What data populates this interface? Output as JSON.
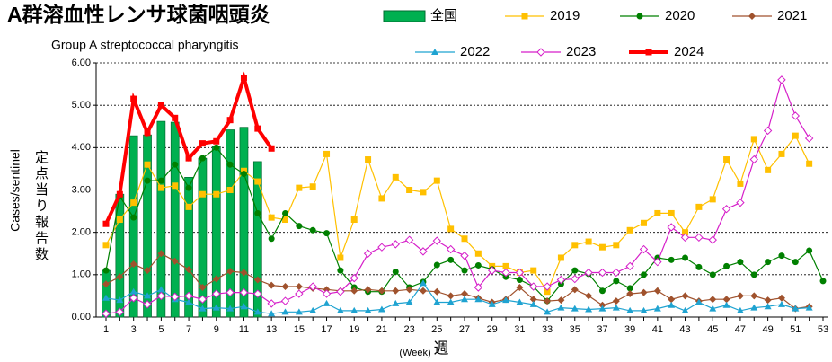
{
  "chart_data": {
    "type": "line",
    "title": "A群溶血性レンサ球菌咽頭炎",
    "subtitle": "Group A streptococcal pharyngitis",
    "y_label": "Cases/sentinel",
    "y_label_ja": "定点当り報告数",
    "x_label": "(Week)",
    "x_label_ja": "週",
    "categories": [
      1,
      null,
      3,
      null,
      5,
      null,
      7,
      null,
      9,
      null,
      11,
      null,
      13,
      null,
      15,
      null,
      17,
      null,
      19,
      null,
      21,
      null,
      23,
      null,
      25,
      null,
      27,
      null,
      29,
      null,
      31,
      null,
      33,
      null,
      35,
      null,
      37,
      null,
      39,
      null,
      41,
      null,
      43,
      null,
      45,
      null,
      47,
      null,
      49,
      null,
      51,
      null,
      53
    ],
    "ylim": [
      0,
      6
    ],
    "yticks": [
      {
        "value": 0,
        "label": "0.00"
      },
      {
        "value": 1,
        "label": "1.00"
      },
      {
        "value": 2,
        "label": "2.00"
      },
      {
        "value": 3,
        "label": "3.00"
      },
      {
        "value": 4,
        "label": "4.00"
      },
      {
        "value": 5,
        "label": "5.00"
      },
      {
        "value": 6,
        "label": "6.00"
      }
    ],
    "grid": true,
    "series": [
      {
        "name": "全国",
        "type": "bar",
        "color": "#00b050",
        "values": [
          1.1,
          2.9,
          4.28,
          4.3,
          4.62,
          4.6,
          3.3,
          3.75,
          4.02,
          4.42,
          4.48,
          3.67,
          null,
          null,
          null,
          null,
          null,
          null,
          null,
          null,
          null,
          null,
          null,
          null,
          null,
          null,
          null,
          null,
          null,
          null,
          null,
          null,
          null,
          null,
          null,
          null,
          null,
          null,
          null,
          null,
          null,
          null,
          null,
          null,
          null,
          null,
          null,
          null,
          null,
          null,
          null,
          null,
          null
        ]
      },
      {
        "name": "2019",
        "color": "#ffc000",
        "marker": "square",
        "values": [
          1.7,
          2.3,
          2.7,
          3.6,
          3.05,
          3.1,
          2.6,
          2.9,
          2.9,
          3.0,
          3.45,
          3.2,
          2.35,
          2.3,
          3.05,
          3.08,
          3.85,
          1.4,
          2.3,
          3.72,
          2.8,
          3.3,
          3.0,
          2.95,
          3.22,
          2.08,
          1.85,
          1.5,
          1.2,
          1.2,
          1.05,
          1.1,
          0.6,
          1.4,
          1.7,
          1.78,
          1.65,
          1.7,
          2.05,
          2.22,
          2.45,
          2.45,
          2.0,
          2.6,
          2.78,
          3.72,
          3.15,
          4.2,
          3.47,
          3.85,
          4.28,
          3.62,
          null
        ]
      },
      {
        "name": "2020",
        "color": "#008000",
        "marker": "circle",
        "values": [
          1.1,
          2.85,
          2.35,
          3.22,
          3.22,
          3.6,
          3.05,
          3.75,
          4.0,
          3.6,
          3.38,
          2.45,
          1.85,
          2.45,
          2.15,
          2.05,
          1.98,
          1.1,
          0.7,
          0.6,
          0.6,
          1.07,
          0.7,
          0.83,
          1.23,
          1.35,
          1.1,
          1.22,
          1.13,
          0.95,
          0.88,
          0.72,
          0.38,
          0.78,
          1.1,
          1.02,
          0.62,
          0.85,
          0.68,
          1.0,
          1.4,
          1.35,
          1.4,
          1.18,
          1.0,
          1.2,
          1.3,
          1.0,
          1.3,
          1.45,
          1.3,
          1.57,
          0.85
        ]
      },
      {
        "name": "2021",
        "color": "#a0522d",
        "marker": "diamond",
        "values": [
          0.78,
          0.95,
          1.25,
          1.1,
          1.5,
          1.32,
          1.12,
          0.7,
          0.9,
          1.08,
          1.05,
          0.88,
          0.75,
          0.72,
          0.72,
          0.68,
          0.65,
          0.62,
          0.62,
          0.65,
          0.62,
          0.62,
          0.65,
          0.62,
          0.6,
          0.5,
          0.55,
          0.45,
          0.35,
          0.42,
          0.7,
          0.42,
          0.38,
          0.4,
          0.65,
          0.5,
          0.28,
          0.38,
          0.55,
          0.58,
          0.62,
          0.42,
          0.5,
          0.38,
          0.42,
          0.42,
          0.5,
          0.5,
          0.4,
          0.45,
          0.2,
          0.25,
          null
        ]
      },
      {
        "name": "2022",
        "color": "#1fa3d1",
        "marker": "triangle",
        "values": [
          0.45,
          0.4,
          0.6,
          0.5,
          0.65,
          0.42,
          0.35,
          0.2,
          0.22,
          0.2,
          0.25,
          0.12,
          0.08,
          0.12,
          0.12,
          0.15,
          0.32,
          0.15,
          0.15,
          0.15,
          0.18,
          0.32,
          0.35,
          0.8,
          0.35,
          0.35,
          0.42,
          0.42,
          0.3,
          0.4,
          0.35,
          0.3,
          0.12,
          0.22,
          0.2,
          0.18,
          0.2,
          0.22,
          0.15,
          0.15,
          0.2,
          0.28,
          0.15,
          0.35,
          0.2,
          0.28,
          0.15,
          0.22,
          0.25,
          0.3,
          0.2,
          0.22,
          null
        ]
      },
      {
        "name": "2023",
        "color": "#d61fc9",
        "marker": "open-diamond",
        "values": [
          0.08,
          0.12,
          0.45,
          0.3,
          0.5,
          0.48,
          0.5,
          0.42,
          0.55,
          0.58,
          0.58,
          0.55,
          0.32,
          0.38,
          0.55,
          0.72,
          0.55,
          0.6,
          0.92,
          1.5,
          1.65,
          1.72,
          1.82,
          1.55,
          1.8,
          1.6,
          1.45,
          0.7,
          1.1,
          1.05,
          1.05,
          0.72,
          0.72,
          0.88,
          0.9,
          1.05,
          1.05,
          1.05,
          1.2,
          1.6,
          1.3,
          2.12,
          1.88,
          1.88,
          1.82,
          2.55,
          2.7,
          3.72,
          4.4,
          5.6,
          4.75,
          4.22,
          null
        ]
      },
      {
        "name": "2024",
        "color": "#ff0000",
        "marker": "square",
        "width": 4,
        "values": [
          2.2,
          2.9,
          5.15,
          4.35,
          5.0,
          4.7,
          3.75,
          4.1,
          4.15,
          4.65,
          5.65,
          4.45,
          3.98,
          null,
          null,
          null,
          null,
          null,
          null,
          null,
          null,
          null,
          null,
          null,
          null,
          null,
          null,
          null,
          null,
          null,
          null,
          null,
          null,
          null,
          null,
          null,
          null,
          null,
          null,
          null,
          null,
          null,
          null,
          null,
          null,
          null,
          null,
          null,
          null,
          null,
          null,
          null,
          null
        ]
      }
    ]
  }
}
